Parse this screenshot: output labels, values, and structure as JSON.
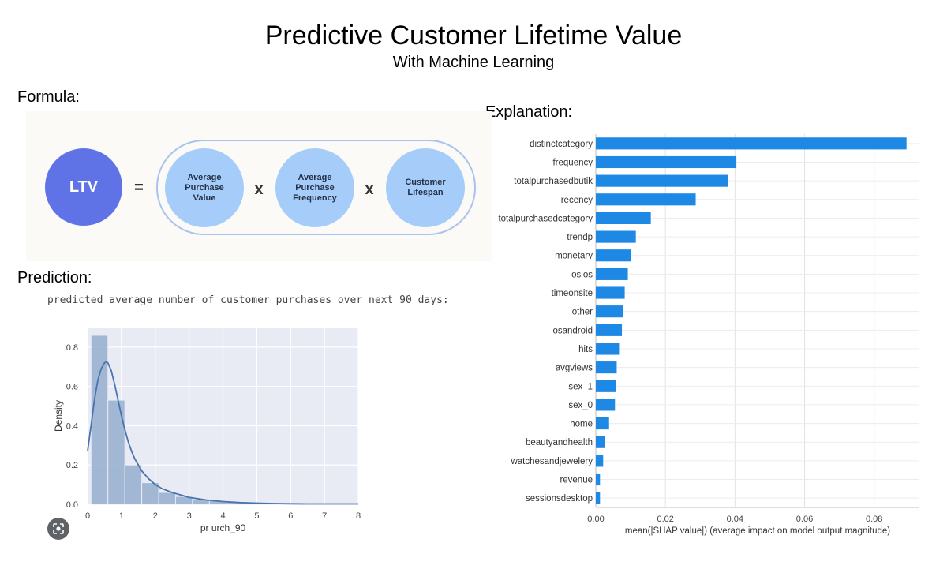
{
  "header": {
    "title": "Predictive Customer Lifetime Value",
    "subtitle": "With Machine Learning"
  },
  "sections": {
    "formula": "Formula:",
    "explanation": "Explanation:",
    "prediction": "Prediction:"
  },
  "formula": {
    "ltv": "LTV",
    "equals": "=",
    "times": "x",
    "components": [
      "Average\nPurchase\nValue",
      "Average\nPurchase\nFrequency",
      "Customer\nLifespan"
    ]
  },
  "prediction_caption": "predicted average number of customer purchases over next 90 days:",
  "icons": {
    "camera": "camera-lens-icon"
  },
  "chart_data": [
    {
      "type": "bar",
      "orientation": "horizontal",
      "categories": [
        "distinctcategory",
        "frequency",
        "totalpurchasedbutik",
        "recency",
        "totalpurchasedcategory",
        "trendp",
        "monetary",
        "osios",
        "timeonsite",
        "other",
        "osandroid",
        "hits",
        "avgviews",
        "sex_1",
        "sex_0",
        "home",
        "beautyandhealth",
        "watchesandjewelery",
        "revenue",
        "sessionsdesktop"
      ],
      "values": [
        0.0893,
        0.0404,
        0.0381,
        0.0287,
        0.0158,
        0.0115,
        0.0101,
        0.0092,
        0.0083,
        0.0078,
        0.0075,
        0.0069,
        0.006,
        0.0057,
        0.0055,
        0.0038,
        0.0026,
        0.0021,
        0.0012,
        0.0012
      ],
      "xlabel": "mean(|SHAP value|) (average impact on model output magnitude)",
      "xticks": [
        "0.00",
        "0.02",
        "0.04",
        "0.06",
        "0.08"
      ],
      "xlim": [
        0,
        0.093
      ],
      "grid": true,
      "colors": {
        "bar": "#1e88e5"
      }
    },
    {
      "type": "histogram",
      "bins": [
        [
          0.1,
          0.6
        ],
        [
          0.6,
          1.1
        ],
        [
          1.1,
          1.6
        ],
        [
          1.6,
          2.1
        ],
        [
          2.1,
          2.6
        ],
        [
          2.6,
          3.1
        ],
        [
          3.1,
          3.6
        ],
        [
          3.6,
          4.1
        ],
        [
          4.1,
          4.6
        ],
        [
          4.6,
          5.1
        ],
        [
          5.1,
          5.6
        ],
        [
          5.6,
          6.1
        ],
        [
          6.1,
          6.6
        ],
        [
          6.6,
          7.1
        ],
        [
          7.1,
          7.6
        ],
        [
          7.6,
          8.0
        ]
      ],
      "values": [
        0.86,
        0.53,
        0.2,
        0.11,
        0.06,
        0.04,
        0.025,
        0.018,
        0.012,
        0.008,
        0.006,
        0.004,
        0.004,
        0.003,
        0.002,
        0.002
      ],
      "kde_x": [
        0,
        0.1,
        0.2,
        0.3,
        0.4,
        0.5,
        0.55,
        0.6,
        0.7,
        0.8,
        0.9,
        1.0,
        1.1,
        1.2,
        1.3,
        1.4,
        1.6,
        1.8,
        2.0,
        2.2,
        2.5,
        2.8,
        3.0,
        3.5,
        4.0,
        4.5,
        5.0,
        5.5,
        6.0,
        6.5,
        7.0,
        7.5,
        8.0
      ],
      "kde_y": [
        0.27,
        0.4,
        0.53,
        0.63,
        0.69,
        0.72,
        0.725,
        0.72,
        0.68,
        0.61,
        0.53,
        0.45,
        0.38,
        0.32,
        0.27,
        0.23,
        0.17,
        0.13,
        0.1,
        0.08,
        0.06,
        0.045,
        0.035,
        0.022,
        0.014,
        0.009,
        0.006,
        0.004,
        0.003,
        0.002,
        0.002,
        0.002,
        0.002
      ],
      "ylabel": "Density",
      "xlabel": "pr     urch_90",
      "xticks": [
        "0",
        "1",
        "2",
        "3",
        "4",
        "5",
        "6",
        "7",
        "8"
      ],
      "yticks": [
        "0.0",
        "0.2",
        "0.4",
        "0.6",
        "0.8"
      ],
      "xlim": [
        0,
        8
      ],
      "ylim": [
        0,
        0.9
      ],
      "grid": true,
      "colors": {
        "background": "#e9ebf4",
        "bar": "#94aecd",
        "line": "#4a74ad"
      }
    }
  ]
}
